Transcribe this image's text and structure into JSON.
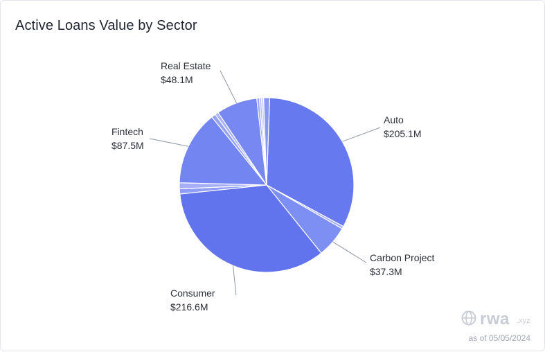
{
  "title": "Active Loans Value by Sector",
  "date_label": "as of 05/05/2024",
  "watermark": {
    "brand": "rwa",
    "suffix": ".xyz"
  },
  "colors": {
    "accent": "#6879ef",
    "line": "#8e95a3",
    "label": "#2b2f38"
  },
  "chart_data": {
    "type": "pie",
    "slices": [
      {
        "label": "Auto",
        "value_label": "$205.1M",
        "value": 205.1,
        "color": "#6679ef",
        "labeled": true
      },
      {
        "label": "",
        "value_label": "",
        "value": 3.0,
        "color": "#a2acf7",
        "labeled": false
      },
      {
        "label": "Carbon Project",
        "value_label": "$37.3M",
        "value": 37.3,
        "color": "#7e8ff3",
        "labeled": true
      },
      {
        "label": "Consumer",
        "value_label": "$216.6M",
        "value": 216.6,
        "color": "#6173ed",
        "labeled": true
      },
      {
        "label": "",
        "value_label": "",
        "value": 6.0,
        "color": "#8f9df5",
        "labeled": false
      },
      {
        "label": "",
        "value_label": "",
        "value": 7.0,
        "color": "#a5aef7",
        "labeled": false
      },
      {
        "label": "Fintech",
        "value_label": "$87.5M",
        "value": 87.5,
        "color": "#7385f1",
        "labeled": true
      },
      {
        "label": "",
        "value_label": "",
        "value": 5.0,
        "color": "#96a2f5",
        "labeled": false
      },
      {
        "label": "",
        "value_label": "",
        "value": 4.0,
        "color": "#a9b2f8",
        "labeled": false
      },
      {
        "label": "Real Estate",
        "value_label": "$48.1M",
        "value": 48.1,
        "color": "#7888f2",
        "labeled": true
      },
      {
        "label": "",
        "value_label": "",
        "value": 3.0,
        "color": "#9aa6f6",
        "labeled": false
      },
      {
        "label": "",
        "value_label": "",
        "value": 2.5,
        "color": "#b3bbf9",
        "labeled": false
      },
      {
        "label": "",
        "value_label": "",
        "value": 2.5,
        "color": "#c4caf9",
        "labeled": false
      },
      {
        "label": "",
        "value_label": "",
        "value": 7.0,
        "color": "#8797f4",
        "labeled": false
      }
    ]
  }
}
